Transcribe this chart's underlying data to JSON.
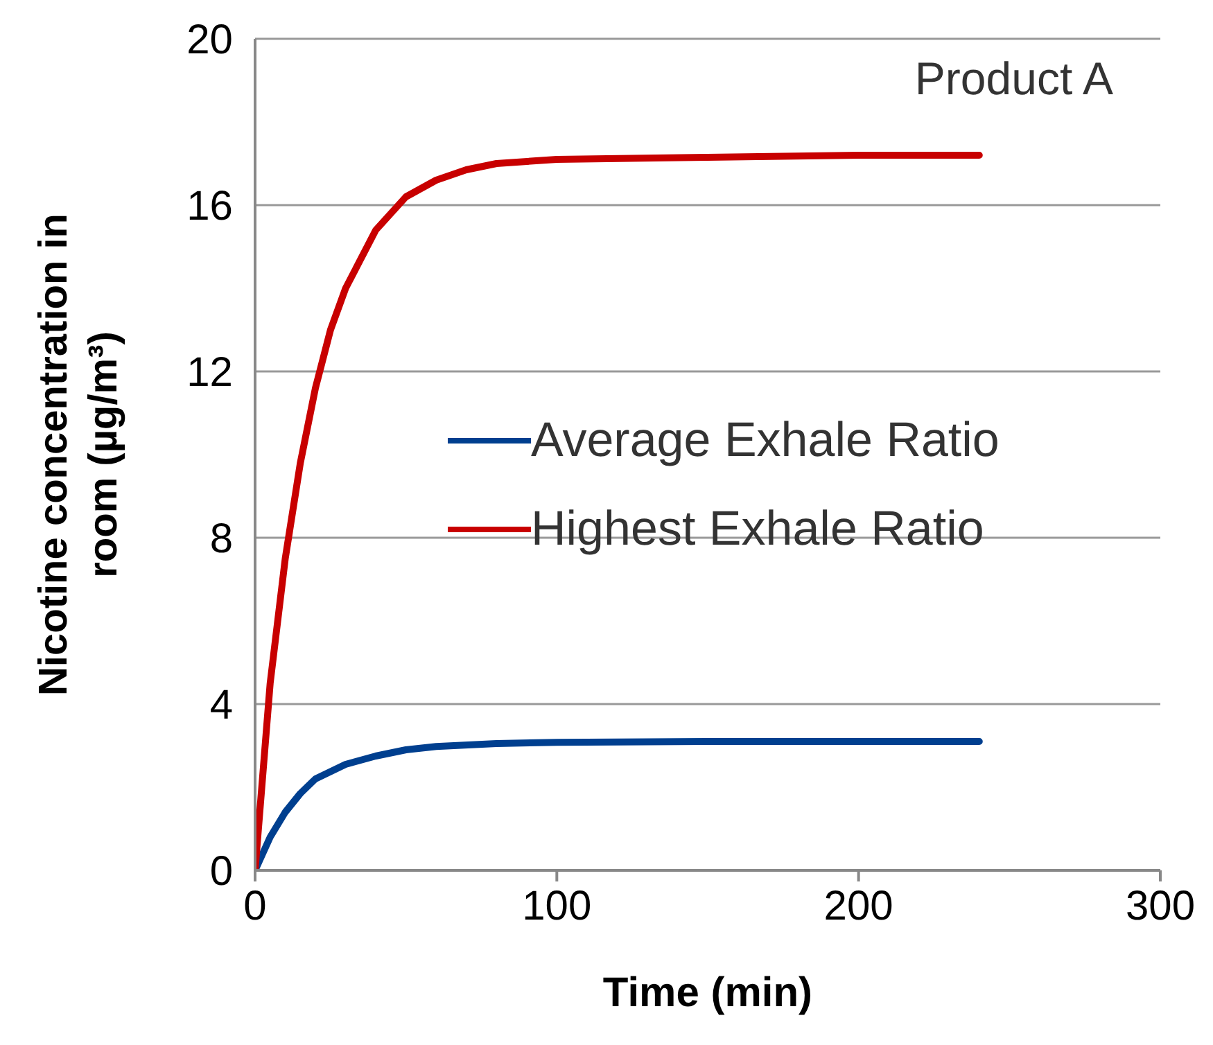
{
  "chart_data": {
    "type": "line",
    "xlabel": "Time (min)",
    "ylabel": "Nicotine concentration in room (µg/m³)",
    "annotations": [
      "Product A"
    ],
    "xlim": [
      0,
      300
    ],
    "xticks": [
      0,
      100,
      200,
      300
    ],
    "ylim": [
      0,
      20
    ],
    "yticks": [
      0,
      4,
      8,
      12,
      16,
      20
    ],
    "grid": "y",
    "legend": "right",
    "marker": "none",
    "line_style": "solid",
    "series": [
      {
        "name": "Average Exhale Ratio",
        "color": "#003f8f",
        "x": [
          0,
          5,
          10,
          15,
          20,
          30,
          40,
          50,
          60,
          80,
          100,
          150,
          200,
          240
        ],
        "values": [
          0,
          0.8,
          1.4,
          1.85,
          2.2,
          2.55,
          2.75,
          2.9,
          2.98,
          3.05,
          3.08,
          3.1,
          3.1,
          3.1
        ]
      },
      {
        "name": "Highest Exhale Ratio",
        "color": "#c80000",
        "x": [
          0,
          5,
          10,
          15,
          20,
          25,
          30,
          40,
          50,
          60,
          70,
          80,
          100,
          150,
          200,
          240
        ],
        "values": [
          0,
          4.5,
          7.5,
          9.8,
          11.6,
          13,
          14,
          15.4,
          16.2,
          16.6,
          16.85,
          17,
          17.1,
          17.15,
          17.2,
          17.2
        ]
      }
    ]
  }
}
